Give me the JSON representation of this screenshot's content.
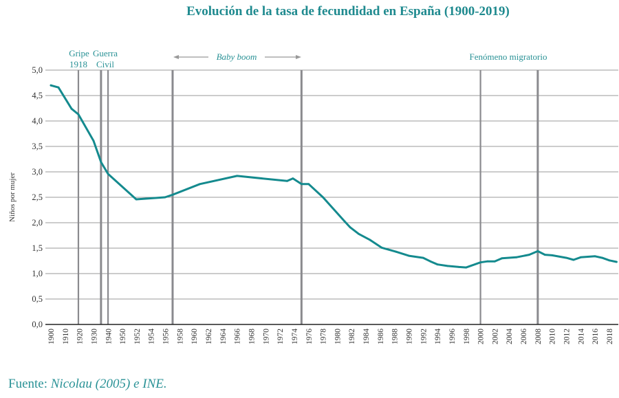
{
  "chart_data": {
    "type": "line",
    "title": "Evolución de la tasa de fecundidad en España (1900-2019)",
    "xlabel": "",
    "ylabel": "Niños por mujer",
    "ylim": [
      0,
      5
    ],
    "yticks": [
      "0,0",
      "0,5",
      "1,0",
      "1,5",
      "2,0",
      "2,5",
      "3,0",
      "3,5",
      "4,0",
      "4,5",
      "5,0"
    ],
    "ytick_values": [
      0,
      0.5,
      1,
      1.5,
      2,
      2.5,
      3,
      3.5,
      4,
      4.5,
      5
    ],
    "grid": true,
    "categories": [
      "1900",
      "1910",
      "1920",
      "1930",
      "1940",
      "1950",
      "1952",
      "1954",
      "1956",
      "1958",
      "1960",
      "1962",
      "1964",
      "1966",
      "1968",
      "1970",
      "1972",
      "1974",
      "1976",
      "1978",
      "1980",
      "1982",
      "1984",
      "1986",
      "1988",
      "1990",
      "1992",
      "1994",
      "1996",
      "1998",
      "2000",
      "2002",
      "2004",
      "2006",
      "2008",
      "2010",
      "2012",
      "2014",
      "2016",
      "2018"
    ],
    "series": [
      {
        "name": "Tasa de fecundidad",
        "color": "#148a8e",
        "points": [
          {
            "pos": 0.0,
            "value": 4.7
          },
          {
            "pos": 0.53,
            "value": 4.66
          },
          {
            "pos": 1.44,
            "value": 4.24
          },
          {
            "pos": 1.92,
            "value": 4.13
          },
          {
            "pos": 2.98,
            "value": 3.61
          },
          {
            "pos": 3.5,
            "value": 3.19
          },
          {
            "pos": 3.99,
            "value": 2.96
          },
          {
            "pos": 5.96,
            "value": 2.46
          },
          {
            "pos": 7.97,
            "value": 2.5
          },
          {
            "pos": 8.5,
            "value": 2.55
          },
          {
            "pos": 10.4,
            "value": 2.76
          },
          {
            "pos": 13.0,
            "value": 2.92
          },
          {
            "pos": 16.5,
            "value": 2.82
          },
          {
            "pos": 16.9,
            "value": 2.87
          },
          {
            "pos": 17.5,
            "value": 2.76
          },
          {
            "pos": 18.0,
            "value": 2.76
          },
          {
            "pos": 19.0,
            "value": 2.5
          },
          {
            "pos": 20.5,
            "value": 2.03
          },
          {
            "pos": 20.9,
            "value": 1.91
          },
          {
            "pos": 21.5,
            "value": 1.78
          },
          {
            "pos": 22.3,
            "value": 1.66
          },
          {
            "pos": 23.1,
            "value": 1.51
          },
          {
            "pos": 24.1,
            "value": 1.43
          },
          {
            "pos": 25.0,
            "value": 1.35
          },
          {
            "pos": 26.0,
            "value": 1.31
          },
          {
            "pos": 26.5,
            "value": 1.24
          },
          {
            "pos": 27.0,
            "value": 1.18
          },
          {
            "pos": 27.7,
            "value": 1.15
          },
          {
            "pos": 28.5,
            "value": 1.13
          },
          {
            "pos": 29.0,
            "value": 1.12
          },
          {
            "pos": 30.0,
            "value": 1.22
          },
          {
            "pos": 30.5,
            "value": 1.24
          },
          {
            "pos": 31.0,
            "value": 1.24
          },
          {
            "pos": 31.5,
            "value": 1.3
          },
          {
            "pos": 32.5,
            "value": 1.32
          },
          {
            "pos": 33.4,
            "value": 1.37
          },
          {
            "pos": 34.0,
            "value": 1.44
          },
          {
            "pos": 34.5,
            "value": 1.37
          },
          {
            "pos": 35.0,
            "value": 1.36
          },
          {
            "pos": 36.0,
            "value": 1.31
          },
          {
            "pos": 36.5,
            "value": 1.27
          },
          {
            "pos": 37.0,
            "value": 1.32
          },
          {
            "pos": 38.0,
            "value": 1.34
          },
          {
            "pos": 38.5,
            "value": 1.31
          },
          {
            "pos": 39.0,
            "value": 1.26
          },
          {
            "pos": 39.5,
            "value": 1.23
          }
        ]
      }
    ],
    "event_lines": [
      {
        "name": "gripe-1918",
        "pos": 1.92
      },
      {
        "name": "guerra-civil-start",
        "pos": 3.5
      },
      {
        "name": "guerra-civil-end",
        "pos": 3.99
      },
      {
        "name": "baby-boom-start",
        "pos": 8.5
      },
      {
        "name": "baby-boom-end",
        "pos": 17.5
      },
      {
        "name": "migratorio-start",
        "pos": 30.0
      },
      {
        "name": "migratorio-2008",
        "pos": 34.0
      }
    ],
    "annotations": {
      "gripe_line1": "Gripe",
      "gripe_line2": "1918",
      "guerra_line1": "Guerra",
      "guerra_line2": "Civil",
      "baby_boom": "Baby boom",
      "migratorio": "Fenómeno migratorio"
    },
    "colors": {
      "line": "#148a8e",
      "title": "#1f8a8f",
      "annotation": "#2a9296",
      "grid": "#9a9a9a",
      "event_line": "#8a8a8e",
      "arrow": "#999999"
    }
  },
  "source": {
    "prefix": "Fuente: ",
    "author": "Nicolau (2005) e INE."
  }
}
